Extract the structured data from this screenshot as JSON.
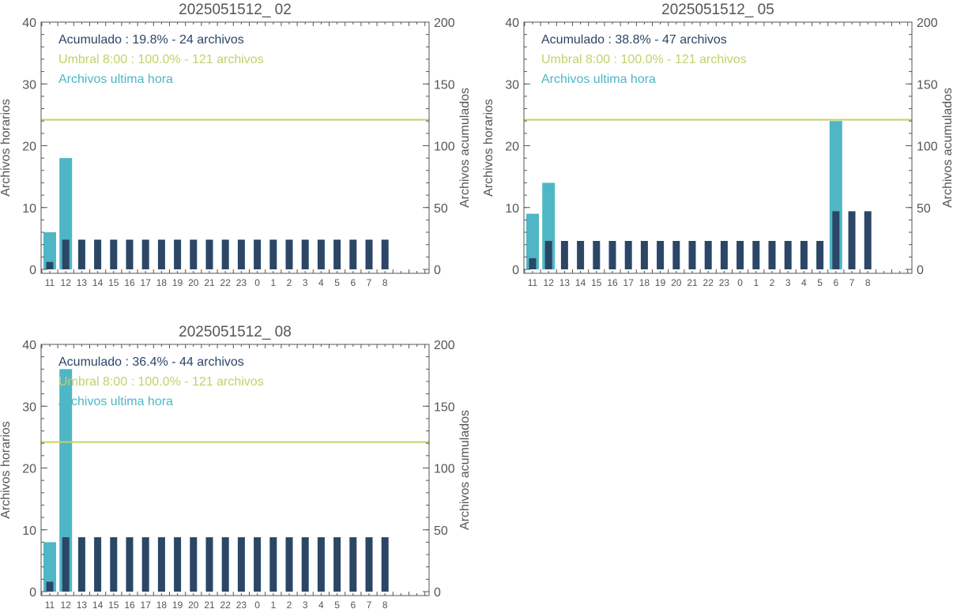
{
  "colors": {
    "hourly": "#4fb6c6",
    "cumulative": "#2c4666",
    "threshold": "#c5d06a",
    "axis": "#555555"
  },
  "chart_data": [
    {
      "type": "bar",
      "title": "2025051512_ 02",
      "ylabel_left": "Archivos horarios",
      "ylabel_right": "Archivos acumulados",
      "ylim_left": [
        0,
        40
      ],
      "ylim_right": [
        0,
        200
      ],
      "yticks_left": [
        "0",
        "10",
        "20",
        "30",
        "40"
      ],
      "yticks_right": [
        "0",
        "50",
        "100",
        "150",
        "200"
      ],
      "categories": [
        "11",
        "12",
        "13",
        "14",
        "15",
        "16",
        "17",
        "18",
        "19",
        "20",
        "21",
        "22",
        "23",
        "0",
        "1",
        "2",
        "3",
        "4",
        "5",
        "6",
        "7",
        "8"
      ],
      "legend": [
        {
          "text": "Acumulado : 19.8% - 24 archivos",
          "color": "cumulative"
        },
        {
          "text": "Umbral 8:00 : 100.0% - 121 archivos",
          "color": "threshold"
        },
        {
          "text": "Archivos ultima hora",
          "color": "hourly"
        }
      ],
      "threshold_right": 121,
      "series": [
        {
          "name": "Archivos ultima hora",
          "axis": "left",
          "values": [
            6,
            18,
            0,
            0,
            0,
            0,
            0,
            0,
            0,
            0,
            0,
            0,
            0,
            0,
            0,
            0,
            0,
            0,
            0,
            0,
            0,
            0
          ]
        },
        {
          "name": "Acumulado",
          "axis": "right",
          "values": [
            6,
            24,
            24,
            24,
            24,
            24,
            24,
            24,
            24,
            24,
            24,
            24,
            24,
            24,
            24,
            24,
            24,
            24,
            24,
            24,
            24,
            24
          ]
        }
      ]
    },
    {
      "type": "bar",
      "title": "2025051512_ 05",
      "ylabel_left": "Archivos horarios",
      "ylabel_right": "Archivos acumulados",
      "ylim_left": [
        0,
        40
      ],
      "ylim_right": [
        0,
        200
      ],
      "yticks_left": [
        "0",
        "10",
        "20",
        "30",
        "40"
      ],
      "yticks_right": [
        "0",
        "50",
        "100",
        "150",
        "200"
      ],
      "categories": [
        "11",
        "12",
        "13",
        "14",
        "15",
        "16",
        "17",
        "18",
        "19",
        "20",
        "21",
        "22",
        "23",
        "0",
        "1",
        "2",
        "3",
        "4",
        "5",
        "6",
        "7",
        "8"
      ],
      "legend": [
        {
          "text": "Acumulado : 38.8% - 47 archivos",
          "color": "cumulative"
        },
        {
          "text": "Umbral 8:00 : 100.0% - 121 archivos",
          "color": "threshold"
        },
        {
          "text": "Archivos ultima hora",
          "color": "hourly"
        }
      ],
      "threshold_right": 121,
      "series": [
        {
          "name": "Archivos ultima hora",
          "axis": "left",
          "values": [
            9,
            14,
            0,
            0,
            0,
            0,
            0,
            0,
            0,
            0,
            0,
            0,
            0,
            0,
            0,
            0,
            0,
            0,
            0,
            24,
            0,
            0
          ]
        },
        {
          "name": "Acumulado",
          "axis": "right",
          "values": [
            9,
            23,
            23,
            23,
            23,
            23,
            23,
            23,
            23,
            23,
            23,
            23,
            23,
            23,
            23,
            23,
            23,
            23,
            23,
            47,
            47,
            47
          ]
        }
      ]
    },
    {
      "type": "bar",
      "title": "2025051512_ 08",
      "ylabel_left": "Archivos horarios",
      "ylabel_right": "Archivos acumulados",
      "ylim_left": [
        0,
        40
      ],
      "ylim_right": [
        0,
        200
      ],
      "yticks_left": [
        "0",
        "10",
        "20",
        "30",
        "40"
      ],
      "yticks_right": [
        "0",
        "50",
        "100",
        "150",
        "200"
      ],
      "categories": [
        "11",
        "12",
        "13",
        "14",
        "15",
        "16",
        "17",
        "18",
        "19",
        "20",
        "21",
        "22",
        "23",
        "0",
        "1",
        "2",
        "3",
        "4",
        "5",
        "6",
        "7",
        "8"
      ],
      "legend": [
        {
          "text": "Acumulado : 36.4% - 44 archivos",
          "color": "cumulative"
        },
        {
          "text": "Umbral 8:00 : 100.0% - 121 archivos",
          "color": "threshold"
        },
        {
          "text": "Archivos ultima hora",
          "color": "hourly"
        }
      ],
      "threshold_right": 121,
      "series": [
        {
          "name": "Archivos ultima hora",
          "axis": "left",
          "values": [
            8,
            36,
            0,
            0,
            0,
            0,
            0,
            0,
            0,
            0,
            0,
            0,
            0,
            0,
            0,
            0,
            0,
            0,
            0,
            0,
            0,
            0
          ]
        },
        {
          "name": "Acumulado",
          "axis": "right",
          "values": [
            8,
            44,
            44,
            44,
            44,
            44,
            44,
            44,
            44,
            44,
            44,
            44,
            44,
            44,
            44,
            44,
            44,
            44,
            44,
            44,
            44,
            44
          ]
        }
      ]
    }
  ]
}
